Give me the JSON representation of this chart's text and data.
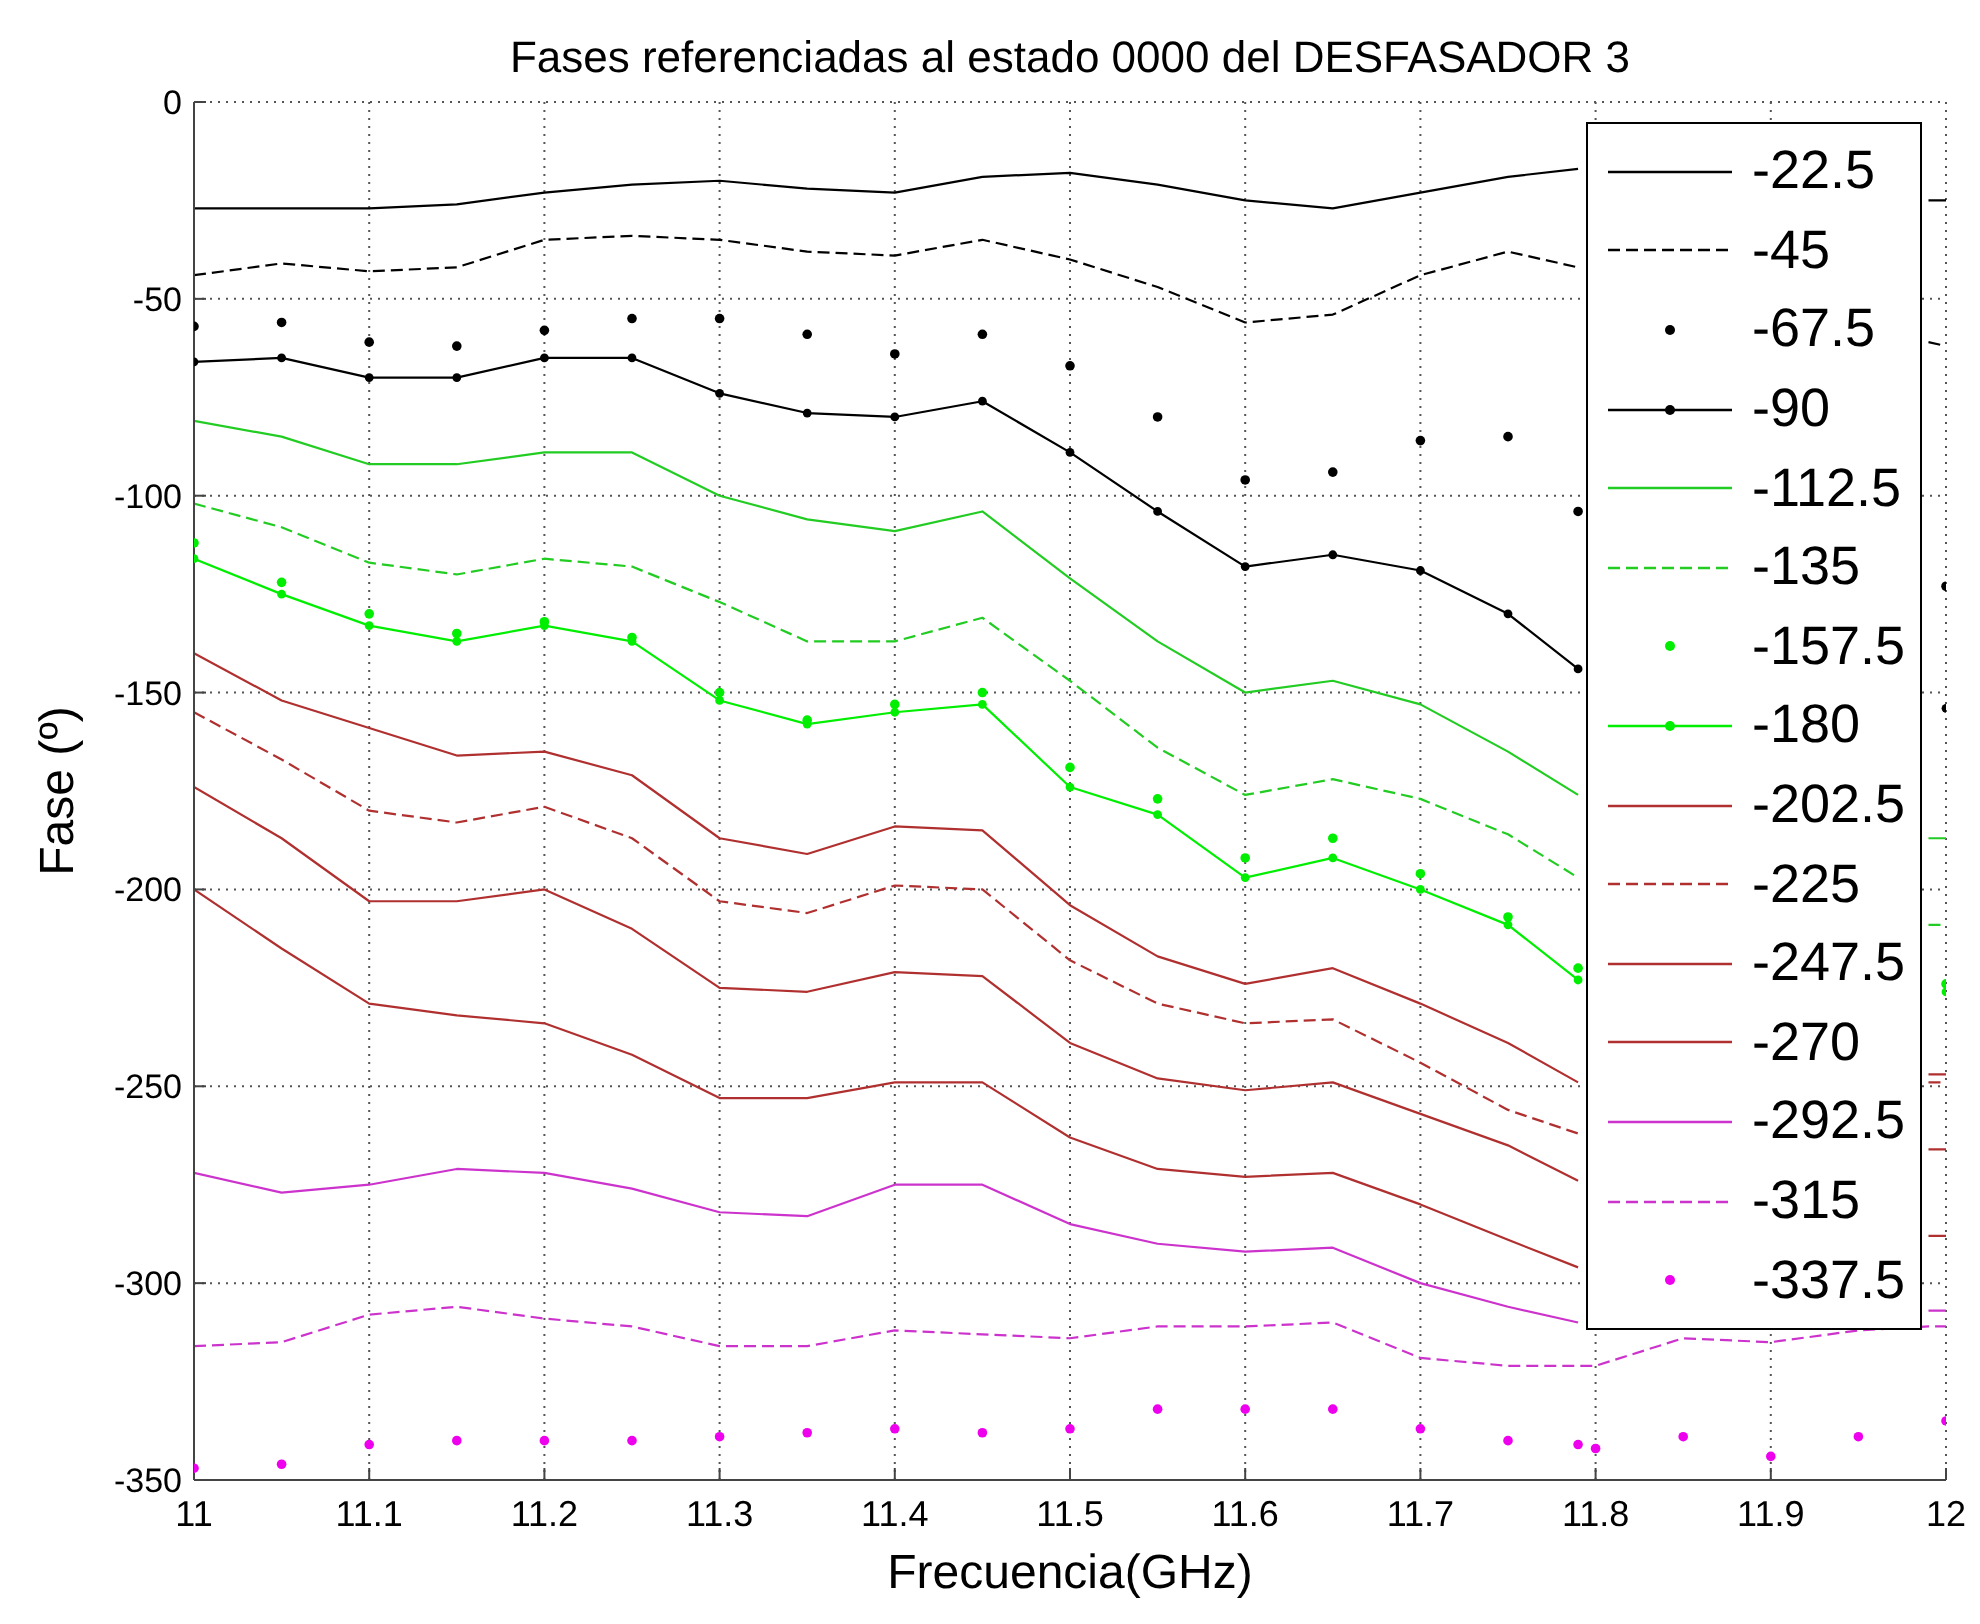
{
  "chart_data": {
    "type": "line",
    "title": "Fases referenciadas al estado 0000 del DESFASADOR 3",
    "xlabel": "Frecuencia(GHz)",
    "ylabel": "Fase (º)",
    "x": [
      11,
      11.05,
      11.1,
      11.15,
      11.2,
      11.25,
      11.3,
      11.35,
      11.4,
      11.45,
      11.5,
      11.55,
      11.6,
      11.65,
      11.7,
      11.75,
      11.79,
      11.8,
      11.85,
      11.9,
      11.95,
      11.99,
      12
    ],
    "xlim": [
      11,
      12
    ],
    "xticks": [
      11,
      11.1,
      11.2,
      11.3,
      11.4,
      11.5,
      11.6,
      11.7,
      11.8,
      11.9,
      12
    ],
    "ylim": [
      -350,
      0
    ],
    "yticks": [
      -350,
      -300,
      -250,
      -200,
      -150,
      -100,
      -50,
      0
    ],
    "grid": true,
    "legend": "top right",
    "series": [
      {
        "name": "-22.5",
        "color": "#000000",
        "line_style": "solid",
        "values": [
          -27,
          -27,
          -27,
          -26,
          -23,
          -21,
          -20,
          -22,
          -23,
          -19,
          -18,
          -21,
          -25,
          -27,
          -23,
          -19,
          -17,
          null,
          null,
          null,
          null,
          -25,
          -25
        ]
      },
      {
        "name": "-45",
        "color": "#000000",
        "line_style": "dashed",
        "values": [
          -44,
          -41,
          -43,
          -42,
          -35,
          -34,
          -35,
          -38,
          -39,
          -35,
          -40,
          -47,
          -56,
          -54,
          -44,
          -38,
          -42,
          null,
          null,
          null,
          null,
          -61,
          -62
        ]
      },
      {
        "name": "-67.5",
        "type": "scatter",
        "marker": "circle",
        "color": "#000000",
        "values": [
          -57,
          -56,
          -61,
          -62,
          -58,
          -55,
          -55,
          -59,
          -64,
          -59,
          -67,
          -80,
          -96,
          -94,
          -86,
          -85,
          -104,
          null,
          null,
          null,
          null,
          null,
          -123
        ]
      },
      {
        "name": "-90",
        "color": "#000000",
        "line_style": "solid",
        "marker": "circle",
        "values": [
          -66,
          -65,
          -70,
          -70,
          -65,
          -65,
          -74,
          -79,
          -80,
          -76,
          -89,
          -104,
          -118,
          -115,
          -119,
          -130,
          -144,
          null,
          null,
          null,
          null,
          null,
          -154
        ]
      },
      {
        "name": "-112.5",
        "color": "#22cc22",
        "line_style": "solid",
        "values": [
          -81,
          -85,
          -92,
          -92,
          -89,
          -89,
          -100,
          -106,
          -109,
          -104,
          -121,
          -137,
          -150,
          -147,
          -153,
          -165,
          -176,
          null,
          null,
          null,
          null,
          -187,
          -187
        ]
      },
      {
        "name": "-135",
        "color": "#22cc22",
        "line_style": "dashed",
        "values": [
          -102,
          -108,
          -117,
          -120,
          -116,
          -118,
          -127,
          -137,
          -137,
          -131,
          -147,
          -164,
          -176,
          -172,
          -177,
          -186,
          -197,
          null,
          null,
          null,
          null,
          -209,
          -209
        ]
      },
      {
        "name": "-157.5",
        "type": "scatter",
        "marker": "circle",
        "color": "#00ee00",
        "values": [
          -112,
          -122,
          -130,
          -135,
          -132,
          -136,
          -150,
          -157,
          -153,
          -150,
          -169,
          -177,
          -192,
          -187,
          -196,
          -207,
          -220,
          null,
          null,
          null,
          null,
          null,
          -224
        ]
      },
      {
        "name": "-180",
        "color": "#00ee00",
        "line_style": "solid",
        "marker": "circle",
        "values": [
          -116,
          -125,
          -133,
          -137,
          -133,
          -137,
          -152,
          -158,
          -155,
          -153,
          -174,
          -181,
          -197,
          -192,
          -200,
          -209,
          -223,
          null,
          null,
          null,
          null,
          null,
          -226
        ]
      },
      {
        "name": "-202.5",
        "color": "#b03030",
        "line_style": "solid",
        "values": [
          -140,
          -152,
          -159,
          -166,
          -165,
          -171,
          -187,
          -191,
          -184,
          -185,
          -204,
          -217,
          -224,
          -220,
          -229,
          -239,
          -249,
          null,
          null,
          null,
          null,
          -247,
          -247
        ]
      },
      {
        "name": "-225",
        "color": "#b03030",
        "line_style": "dashed",
        "values": [
          -155,
          -167,
          -180,
          -183,
          -179,
          -187,
          -203,
          -206,
          -199,
          -200,
          -218,
          -229,
          -234,
          -233,
          -244,
          -256,
          -262,
          null,
          null,
          null,
          null,
          -249,
          -249
        ]
      },
      {
        "name": "-247.5",
        "color": "#b03030",
        "line_style": "solid",
        "values": [
          -174,
          -187,
          -203,
          -203,
          -200,
          -210,
          -225,
          -226,
          -221,
          -222,
          -239,
          -248,
          -251,
          -249,
          -257,
          -265,
          -274,
          null,
          null,
          null,
          null,
          -266,
          -266
        ]
      },
      {
        "name": "-270",
        "color": "#b03030",
        "line_style": "solid",
        "values": [
          -200,
          -215,
          -229,
          -232,
          -234,
          -242,
          -253,
          -253,
          -249,
          -249,
          -263,
          -271,
          -273,
          -272,
          -280,
          -289,
          -296,
          null,
          null,
          null,
          null,
          -288,
          -288
        ]
      },
      {
        "name": "-292.5",
        "color": "#cc33cc",
        "line_style": "solid",
        "values": [
          -272,
          -277,
          -275,
          -271,
          -272,
          -276,
          -282,
          -283,
          -275,
          -275,
          -285,
          -290,
          -292,
          -291,
          -300,
          -306,
          -310,
          null,
          null,
          null,
          null,
          -307,
          -307
        ]
      },
      {
        "name": "-315",
        "color": "#cc33cc",
        "line_style": "dashed",
        "values": [
          -316,
          -315,
          -308,
          -306,
          -309,
          -311,
          -316,
          -316,
          -312,
          -313,
          -314,
          -311,
          -311,
          -310,
          -319,
          -321,
          -321,
          -321,
          -314,
          -315,
          -312,
          -311,
          -311
        ]
      },
      {
        "name": "-337.5",
        "type": "scatter",
        "marker": "circle",
        "color": "#ee00ee",
        "values": [
          -347,
          -346,
          -341,
          -340,
          -340,
          -340,
          -339,
          -338,
          -337,
          -338,
          -337,
          -332,
          -332,
          -332,
          -337,
          -340,
          -341,
          -342,
          -339,
          -344,
          -339,
          null,
          -335
        ]
      }
    ]
  }
}
